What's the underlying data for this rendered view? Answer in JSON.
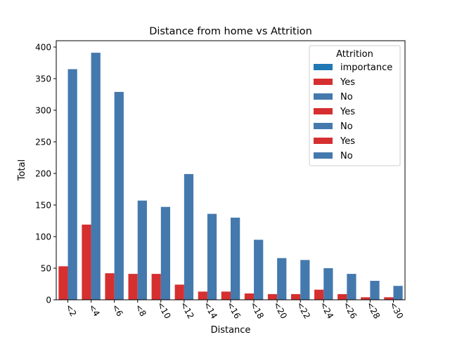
{
  "chart_data": {
    "type": "bar",
    "title": "Distance from home vs Attrition",
    "xlabel": "Distance",
    "ylabel": "Total",
    "ylim": [
      0,
      410
    ],
    "yticks": [
      0,
      50,
      100,
      150,
      200,
      250,
      300,
      350,
      400
    ],
    "categories": [
      "<2",
      "<4",
      "<6",
      "<8",
      "<10",
      "<12",
      "<14",
      "<16",
      "<18",
      "<20",
      "<22",
      "<24",
      "<26",
      "<28",
      "<30"
    ],
    "series": [
      {
        "name": "Yes",
        "color": "#d62f30",
        "values": [
          53,
          119,
          42,
          41,
          41,
          24,
          13,
          13,
          10,
          9,
          9,
          16,
          9,
          4,
          4
        ]
      },
      {
        "name": "No",
        "color": "#4479ae",
        "values": [
          365,
          391,
          329,
          157,
          147,
          199,
          136,
          130,
          95,
          66,
          63,
          50,
          41,
          30,
          22
        ]
      }
    ],
    "legend": {
      "title": "Attrition",
      "placement": "top-right",
      "entries": [
        {
          "label": "importance",
          "color": "#1f77b4"
        },
        {
          "label": "Yes",
          "color": "#d62f30"
        },
        {
          "label": "No",
          "color": "#4479ae"
        },
        {
          "label": "Yes",
          "color": "#d62f30"
        },
        {
          "label": "No",
          "color": "#4479ae"
        },
        {
          "label": "Yes",
          "color": "#d62f30"
        },
        {
          "label": "No",
          "color": "#4479ae"
        }
      ]
    },
    "grid": false
  }
}
